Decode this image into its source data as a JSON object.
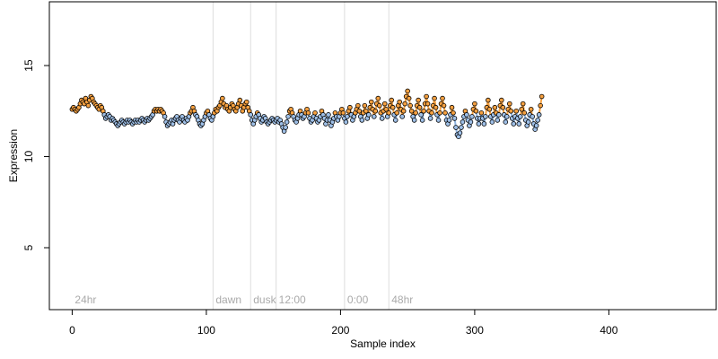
{
  "chart_data": {
    "type": "scatter",
    "xlabel": "Sample index",
    "ylabel": "Expression",
    "xlim": [
      -17,
      480
    ],
    "ylim": [
      1.6,
      18.5
    ],
    "x_ticks": [
      0,
      100,
      200,
      300,
      400
    ],
    "y_ticks": [
      5,
      10,
      15
    ],
    "colors": {
      "above_fill": "#f5a040",
      "below_fill": "#9fc0e8",
      "line_orange": "#f5a040",
      "line_blue": "#8fb4e0",
      "divider": "#dddddd",
      "point_stroke": "#000000"
    },
    "segments": [
      {
        "label": "24hr",
        "x": 0
      },
      {
        "label": "dawn",
        "x": 105
      },
      {
        "label": "dusk",
        "x": 133
      },
      {
        "label": "12:00",
        "x": 152
      },
      {
        "label": "0:00",
        "x": 203
      },
      {
        "label": "48hr",
        "x": 236
      }
    ],
    "series": [
      {
        "y": [
          12.6,
          12.7,
          12.6,
          12.5,
          12.6,
          12.7,
          12.9,
          13.1,
          13.0,
          12.9,
          13.2,
          13.0,
          12.8,
          13.1,
          13.3,
          13.2,
          13.0,
          12.9,
          12.8,
          12.7,
          12.6,
          12.8,
          12.7,
          12.5,
          12.3,
          12.1,
          12.2,
          12.3,
          12.2,
          12.0,
          12.1,
          12.0,
          11.9,
          11.8,
          11.7,
          11.8,
          11.9,
          12.0,
          11.9,
          11.8,
          11.9,
          12.0,
          11.9,
          12.0,
          11.9,
          11.8,
          11.9,
          12.0,
          11.9,
          12.0,
          11.9,
          12.0,
          12.1,
          12.0,
          11.9,
          12.0,
          12.1,
          12.0,
          12.1,
          12.2,
          12.3,
          12.5,
          12.6,
          12.5,
          12.6,
          12.5,
          12.6,
          12.5,
          12.4,
          12.2,
          11.9,
          11.7,
          11.8,
          11.9,
          12.0,
          11.8,
          12.0,
          12.1,
          12.2,
          12.0,
          11.9,
          12.1,
          12.2,
          12.0,
          11.9,
          12.1,
          12.0,
          12.2,
          12.4,
          12.5,
          12.7,
          12.5,
          12.3,
          12.2,
          12.0,
          11.8,
          11.7,
          11.8,
          12.0,
          12.2,
          12.4,
          12.5,
          12.3,
          12.1,
          12.0,
          12.2,
          12.4,
          12.6,
          12.5,
          12.7,
          12.8,
          13.0,
          13.2,
          12.9,
          12.7,
          12.8,
          12.6,
          12.5,
          12.7,
          12.9,
          12.8,
          12.6,
          12.5,
          12.7,
          12.9,
          13.1,
          12.8,
          12.5,
          12.7,
          12.9,
          13.0,
          12.7,
          12.5,
          12.3,
          12.0,
          11.8,
          12.0,
          12.2,
          12.4,
          12.3,
          12.1,
          11.9,
          12.0,
          12.2,
          12.1,
          11.9,
          11.8,
          11.9,
          12.0,
          12.1,
          12.0,
          11.9,
          12.0,
          12.1,
          11.9,
          12.0,
          11.8,
          11.6,
          11.4,
          11.6,
          11.9,
          12.2,
          12.5,
          12.6,
          12.4,
          12.2,
          12.0,
          11.9,
          12.1,
          12.3,
          12.5,
          12.3,
          12.1,
          12.2,
          12.4,
          12.6,
          12.4,
          12.1,
          11.9,
          12.0,
          12.2,
          12.4,
          12.1,
          11.9,
          12.0,
          12.2,
          12.5,
          12.3,
          12.1,
          11.8,
          12.0,
          12.3,
          12.0,
          11.7,
          11.9,
          12.1,
          12.4,
          12.2,
          12.0,
          12.2,
          12.4,
          12.6,
          12.4,
          12.1,
          11.9,
          12.2,
          12.5,
          12.7,
          12.3,
          12.0,
          12.2,
          12.4,
          12.6,
          12.8,
          12.5,
          12.2,
          12.0,
          12.4,
          12.8,
          12.5,
          12.1,
          12.3,
          12.7,
          13.0,
          12.6,
          12.2,
          12.5,
          12.9,
          13.2,
          12.8,
          12.4,
          12.1,
          12.5,
          12.9,
          12.6,
          12.2,
          12.4,
          12.8,
          13.1,
          12.7,
          12.3,
          12.0,
          12.4,
          12.8,
          13.0,
          12.6,
          12.2,
          12.5,
          12.9,
          13.3,
          13.6,
          13.2,
          12.8,
          12.5,
          12.2,
          12.0,
          12.4,
          12.8,
          13.1,
          12.7,
          12.3,
          12.0,
          12.5,
          12.9,
          13.3,
          12.9,
          12.5,
          12.1,
          12.4,
          12.8,
          13.2,
          12.7,
          12.3,
          12.0,
          12.4,
          12.9,
          13.2,
          12.8,
          12.4,
          12.0,
          11.8,
          12.0,
          12.3,
          12.7,
          12.4,
          12.1,
          11.6,
          11.2,
          11.1,
          11.3,
          11.6,
          11.9,
          12.2,
          12.5,
          12.3,
          12.0,
          11.7,
          11.9,
          12.2,
          12.6,
          12.9,
          12.5,
          12.1,
          11.8,
          12.1,
          12.4,
          12.1,
          11.8,
          12.2,
          12.7,
          13.1,
          12.6,
          12.2,
          11.9,
          12.3,
          12.7,
          12.4,
          12.0,
          12.3,
          12.8,
          13.1,
          12.7,
          12.3,
          11.9,
          12.2,
          12.6,
          12.9,
          12.5,
          12.1,
          11.8,
          12.2,
          12.5,
          12.1,
          11.8,
          12.2,
          12.6,
          12.9,
          12.4,
          12.0,
          11.7,
          11.9,
          12.3,
          12.6,
          12.2,
          11.8,
          11.5,
          11.7,
          12.0,
          12.3,
          12.8,
          13.3
        ]
      }
    ]
  }
}
